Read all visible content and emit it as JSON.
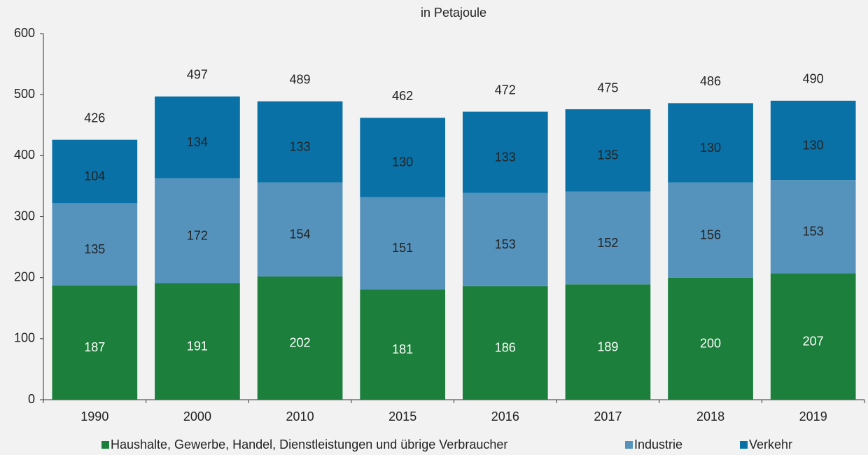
{
  "chart_data": {
    "type": "stacked_bar",
    "subtitle": "in Petajoule",
    "categories": [
      "1990",
      "2000",
      "2010",
      "2015",
      "2016",
      "2017",
      "2018",
      "2019"
    ],
    "series": [
      {
        "name": "Haushalte, Gewerbe, Handel, Dienstleistungen und übrige Verbraucher",
        "color": "#1c7f3b",
        "values": [
          187,
          191,
          202,
          181,
          186,
          189,
          200,
          207
        ]
      },
      {
        "name": "Industrie",
        "color": "#5593bd",
        "values": [
          135,
          172,
          154,
          151,
          153,
          152,
          156,
          153
        ]
      },
      {
        "name": "Verkehr",
        "color": "#0971a6",
        "values": [
          104,
          134,
          133,
          130,
          133,
          135,
          130,
          130
        ]
      }
    ],
    "totals": [
      426,
      497,
      489,
      462,
      472,
      475,
      486,
      490
    ],
    "ylim": [
      0,
      600
    ],
    "yticks": [
      0,
      100,
      200,
      300,
      400,
      500,
      600
    ],
    "grid": false,
    "legend": "bottom"
  }
}
